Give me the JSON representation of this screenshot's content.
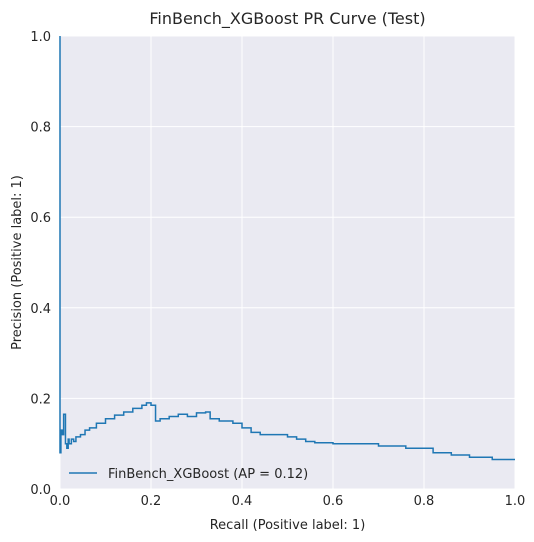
{
  "chart_data": {
    "type": "line",
    "title": "FinBench_XGBoost PR Curve (Test)",
    "xlabel": "Recall (Positive label: 1)",
    "ylabel": "Precision (Positive label: 1)",
    "xlim": [
      0,
      1
    ],
    "ylim": [
      0,
      1
    ],
    "x_ticks": [
      "0.0",
      "0.2",
      "0.4",
      "0.6",
      "0.8",
      "1.0"
    ],
    "y_ticks": [
      "0.0",
      "0.2",
      "0.4",
      "0.6",
      "0.8",
      "1.0"
    ],
    "grid": true,
    "legend_position": "lower-left",
    "legend": [
      "FinBench_XGBoost (AP = 0.12)"
    ],
    "colors": {
      "plot_bg": "#eaeaf2",
      "grid": "#ffffff",
      "line": "#1f77b4",
      "text": "#262626"
    },
    "series": [
      {
        "name": "FinBench_XGBoost (AP = 0.12)",
        "x": [
          0.0,
          0.0,
          0.002,
          0.002,
          0.005,
          0.005,
          0.008,
          0.008,
          0.012,
          0.012,
          0.015,
          0.015,
          0.018,
          0.018,
          0.02,
          0.02,
          0.025,
          0.025,
          0.03,
          0.03,
          0.035,
          0.035,
          0.045,
          0.045,
          0.055,
          0.055,
          0.065,
          0.065,
          0.08,
          0.08,
          0.1,
          0.1,
          0.12,
          0.12,
          0.14,
          0.14,
          0.16,
          0.16,
          0.18,
          0.18,
          0.19,
          0.19,
          0.2,
          0.2,
          0.21,
          0.21,
          0.22,
          0.22,
          0.24,
          0.24,
          0.26,
          0.26,
          0.28,
          0.28,
          0.3,
          0.3,
          0.32,
          0.32,
          0.33,
          0.33,
          0.35,
          0.35,
          0.38,
          0.38,
          0.4,
          0.4,
          0.42,
          0.42,
          0.44,
          0.44,
          0.46,
          0.46,
          0.5,
          0.5,
          0.52,
          0.52,
          0.54,
          0.54,
          0.56,
          0.56,
          0.6,
          0.6,
          0.66,
          0.66,
          0.7,
          0.7,
          0.76,
          0.76,
          0.82,
          0.82,
          0.86,
          0.86,
          0.9,
          0.9,
          0.95,
          0.95,
          1.0
        ],
        "y": [
          1.0,
          0.08,
          0.08,
          0.13,
          0.13,
          0.12,
          0.12,
          0.165,
          0.165,
          0.1,
          0.1,
          0.09,
          0.09,
          0.11,
          0.11,
          0.1,
          0.1,
          0.11,
          0.11,
          0.105,
          0.105,
          0.115,
          0.115,
          0.12,
          0.12,
          0.13,
          0.13,
          0.135,
          0.135,
          0.145,
          0.145,
          0.155,
          0.155,
          0.163,
          0.163,
          0.17,
          0.17,
          0.178,
          0.178,
          0.185,
          0.185,
          0.19,
          0.19,
          0.185,
          0.185,
          0.15,
          0.15,
          0.155,
          0.155,
          0.16,
          0.16,
          0.165,
          0.165,
          0.16,
          0.16,
          0.168,
          0.168,
          0.17,
          0.17,
          0.155,
          0.155,
          0.15,
          0.15,
          0.145,
          0.145,
          0.135,
          0.135,
          0.125,
          0.125,
          0.12,
          0.12,
          0.12,
          0.12,
          0.115,
          0.115,
          0.11,
          0.11,
          0.105,
          0.105,
          0.102,
          0.102,
          0.1,
          0.1,
          0.1,
          0.1,
          0.095,
          0.095,
          0.09,
          0.09,
          0.08,
          0.08,
          0.075,
          0.075,
          0.07,
          0.07,
          0.065,
          0.065
        ]
      }
    ]
  }
}
